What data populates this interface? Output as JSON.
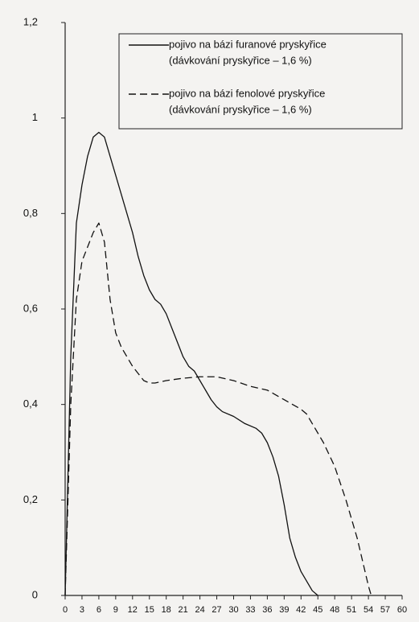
{
  "chart_data": {
    "type": "line",
    "xlim": [
      0,
      60
    ],
    "xticks": [
      0,
      3,
      6,
      9,
      12,
      15,
      18,
      21,
      24,
      27,
      30,
      33,
      36,
      39,
      42,
      45,
      48,
      51,
      54,
      57,
      60
    ],
    "ylim": [
      0,
      1.2
    ],
    "yticks": [
      0,
      {
        "value": 0.2,
        "label": "0,2"
      },
      {
        "value": 0.4,
        "label": "0,4"
      },
      {
        "value": 0.6,
        "label": "0,6"
      },
      {
        "value": 0.8,
        "label": "0,8"
      },
      1,
      {
        "value": 1.2,
        "label": "1,2"
      }
    ],
    "grid": false,
    "legend": "top-right",
    "series": [
      {
        "name": "pojivo na bázi furanové pryskyřice",
        "detail": "(dávkování pryskyřice – 1,6 %)",
        "color": "#111111",
        "line_style": "solid",
        "x": [
          0,
          1,
          2,
          3,
          4,
          5,
          6,
          7,
          8,
          9,
          10,
          11,
          12,
          13,
          14,
          15,
          16,
          17,
          18,
          19,
          20,
          21,
          22,
          23,
          24,
          25,
          26,
          27,
          28,
          30,
          32,
          34,
          35,
          36,
          37,
          38,
          39,
          40,
          41,
          42,
          43,
          44,
          45
        ],
        "values": [
          0,
          0.5,
          0.78,
          0.86,
          0.92,
          0.96,
          0.97,
          0.96,
          0.92,
          0.88,
          0.84,
          0.8,
          0.76,
          0.71,
          0.67,
          0.64,
          0.62,
          0.61,
          0.59,
          0.56,
          0.53,
          0.5,
          0.48,
          0.47,
          0.45,
          0.43,
          0.41,
          0.395,
          0.385,
          0.375,
          0.36,
          0.35,
          0.34,
          0.32,
          0.29,
          0.25,
          0.19,
          0.12,
          0.08,
          0.05,
          0.03,
          0.01,
          0
        ]
      },
      {
        "name": "pojivo na bázi fenolové pryskyřice",
        "detail": "(dávkování pryskyřice – 1,6 %)",
        "color": "#111111",
        "line_style": "dashed",
        "x": [
          0,
          1,
          2,
          3,
          4,
          5,
          6,
          7,
          8,
          9,
          10,
          11,
          12,
          13,
          14,
          15,
          16,
          18,
          21,
          24,
          27,
          30,
          33,
          36,
          39,
          42,
          43,
          44,
          45,
          46,
          48,
          50,
          52,
          53,
          54,
          54.5
        ],
        "values": [
          0,
          0.4,
          0.62,
          0.7,
          0.73,
          0.76,
          0.78,
          0.74,
          0.62,
          0.55,
          0.52,
          0.5,
          0.48,
          0.465,
          0.45,
          0.445,
          0.445,
          0.45,
          0.455,
          0.458,
          0.458,
          0.45,
          0.438,
          0.43,
          0.41,
          0.39,
          0.38,
          0.36,
          0.34,
          0.32,
          0.27,
          0.2,
          0.12,
          0.07,
          0.02,
          0
        ]
      }
    ]
  }
}
